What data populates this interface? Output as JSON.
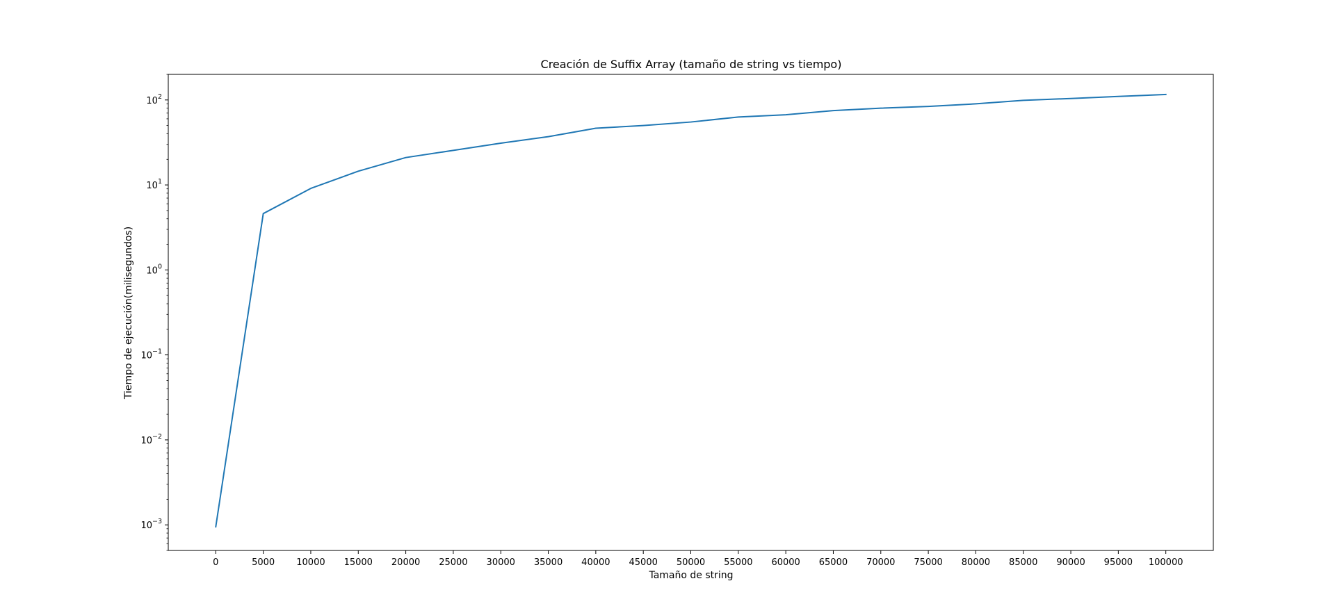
{
  "chart_data": {
    "type": "line",
    "title": "Creación de Suffix Array (tamaño de string vs tiempo)",
    "xlabel": "Tamaño de string",
    "ylabel": "Tiempo de ejecución(milisegundos)",
    "yscale": "log",
    "xlim": [
      -5000,
      105000
    ],
    "ylim": [
      0.0005,
      200
    ],
    "x_ticks": [
      0,
      5000,
      10000,
      15000,
      20000,
      25000,
      30000,
      35000,
      40000,
      45000,
      50000,
      55000,
      60000,
      65000,
      70000,
      75000,
      80000,
      85000,
      90000,
      95000,
      100000
    ],
    "y_ticks": [
      {
        "base": "10",
        "exp": "−3",
        "value": 0.001
      },
      {
        "base": "10",
        "exp": "−2",
        "value": 0.01
      },
      {
        "base": "10",
        "exp": "−1",
        "value": 0.1
      },
      {
        "base": "10",
        "exp": "0",
        "value": 1
      },
      {
        "base": "10",
        "exp": "1",
        "value": 10
      },
      {
        "base": "10",
        "exp": "2",
        "value": 100
      }
    ],
    "grid": false,
    "series": [
      {
        "color": "#1f77b4",
        "x": [
          0,
          5000,
          10000,
          15000,
          20000,
          25000,
          30000,
          35000,
          40000,
          45000,
          50000,
          55000,
          60000,
          65000,
          70000,
          75000,
          80000,
          85000,
          90000,
          95000,
          100000
        ],
        "y": [
          0.00095,
          4.6,
          9.1,
          14.5,
          21,
          25.5,
          31,
          37,
          46.5,
          50,
          55,
          63,
          67,
          75,
          80,
          84,
          90,
          99,
          104,
          110,
          116
        ]
      }
    ]
  }
}
